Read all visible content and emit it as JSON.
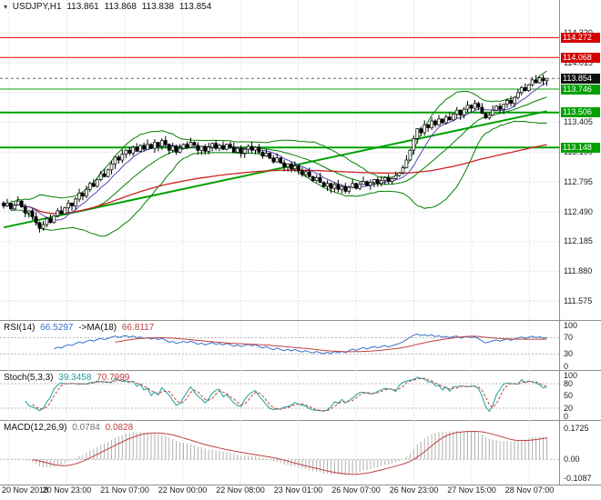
{
  "panels": {
    "main": {
      "symbol": "USDJPY,H1",
      "open": "113.861",
      "high": "113.868",
      "low": "113.838",
      "close": "113.854"
    },
    "rsi": {
      "label": "RSI(14)",
      "value": "66.5297",
      "ma_label": "->MA(18)",
      "ma_value": "66.8117"
    },
    "stoch": {
      "label": "Stoch(5,3,3)",
      "k_value": "39.3458",
      "d_value": "70.7999"
    },
    "macd": {
      "label": "MACD(12,26,9)",
      "main_value": "0.0784",
      "signal_value": "0.0828"
    }
  },
  "icons": {
    "chart_marker": "▾"
  },
  "chart_data": {
    "type": "candlestick",
    "symbol": "USDJPY",
    "timeframe": "H1",
    "grid_color": "#d4d4d4",
    "y_range": {
      "min": 111.42,
      "max": 114.62
    },
    "price_grid": [
      114.32,
      114.015,
      113.71,
      113.405,
      113.1,
      112.795,
      112.49,
      112.185,
      111.88,
      111.575
    ],
    "time_labels": [
      "20 Nov 2018",
      "20 Nov 23:00",
      "21 Nov 07:00",
      "22 Nov 00:00",
      "22 Nov 08:00",
      "23 Nov 01:00",
      "26 Nov 07:00",
      "26 Nov 23:00",
      "27 Nov 15:00",
      "28 Nov 07:00"
    ],
    "first_open": 112.58,
    "closes": [
      112.55,
      112.58,
      112.52,
      112.56,
      112.6,
      112.54,
      112.48,
      112.5,
      112.44,
      112.38,
      112.32,
      112.36,
      112.42,
      112.38,
      112.45,
      112.5,
      112.47,
      112.53,
      112.58,
      112.55,
      112.62,
      112.68,
      112.65,
      112.72,
      112.78,
      112.75,
      112.82,
      112.88,
      112.85,
      112.92,
      112.98,
      113.05,
      113.02,
      113.08,
      113.12,
      113.09,
      113.15,
      113.11,
      113.17,
      113.13,
      113.18,
      113.14,
      113.2,
      113.16,
      113.22,
      113.18,
      113.12,
      113.16,
      113.1,
      113.14,
      113.18,
      113.15,
      113.2,
      113.17,
      113.12,
      113.16,
      113.11,
      113.15,
      113.19,
      113.14,
      113.17,
      113.13,
      113.18,
      113.15,
      113.1,
      113.14,
      113.09,
      113.13,
      113.16,
      113.12,
      113.15,
      113.1,
      113.06,
      113.09,
      113.04,
      113.0,
      113.04,
      112.99,
      112.95,
      112.98,
      112.93,
      112.96,
      112.91,
      112.87,
      112.9,
      112.85,
      112.81,
      112.84,
      112.79,
      112.75,
      112.78,
      112.73,
      112.77,
      112.72,
      112.75,
      112.7,
      112.74,
      112.78,
      112.73,
      112.77,
      112.8,
      112.76,
      112.79,
      112.82,
      112.78,
      112.81,
      112.84,
      112.8,
      112.83,
      112.86,
      112.89,
      112.94,
      113.02,
      113.12,
      113.24,
      113.34,
      113.3,
      113.38,
      113.35,
      113.42,
      113.38,
      113.44,
      113.4,
      113.46,
      113.43,
      113.49,
      113.53,
      113.48,
      113.54,
      113.58,
      113.55,
      113.6,
      113.56,
      113.5,
      113.45,
      113.48,
      113.53,
      113.57,
      113.54,
      113.59,
      113.63,
      113.6,
      113.66,
      113.71,
      113.76,
      113.73,
      113.79,
      113.84,
      113.81,
      113.86,
      113.83,
      113.854
    ],
    "wick_pattern": [
      0.018,
      0.042,
      0.008,
      0.028,
      0.05,
      0.012,
      0.032,
      0.006,
      0.022,
      0.046,
      0.01,
      0.036
    ],
    "horizontal_lines": [
      {
        "value": 114.272,
        "color": "#e00000",
        "width": 1,
        "tag_bg": "#d40000"
      },
      {
        "value": 114.068,
        "color": "#e00000",
        "width": 1,
        "tag_bg": "#d40000"
      },
      {
        "value": 113.746,
        "color": "#00a000",
        "width": 1,
        "tag_bg": "#00a000"
      },
      {
        "value": 113.506,
        "color": "#00a000",
        "width": 2,
        "tag_bg": "#00a000"
      },
      {
        "value": 113.148,
        "color": "#00a000",
        "width": 2,
        "tag_bg": "#00a000"
      }
    ],
    "current_price": {
      "value": 113.854,
      "tag_bg": "#111111"
    },
    "trendline": {
      "color": "#00a000",
      "width": 2,
      "from_bar": 0,
      "from_price": 112.33,
      "to_bar": 151,
      "to_price": 113.52
    },
    "overlays": {
      "bollinger": {
        "period": 20,
        "deviation": 2,
        "color": "#008000"
      },
      "ma_fast": {
        "period": 8,
        "color": "#5544bb"
      },
      "ma_slow": {
        "period": 120,
        "color": "#cc2222"
      }
    },
    "indicators": {
      "rsi": {
        "period": 14,
        "ma_period": 18,
        "color": "#3b6fc9",
        "ma_color": "#c04040",
        "levels": [
          70,
          30
        ],
        "axis": [
          {
            "v": 100,
            "t": "100"
          },
          {
            "v": 70,
            "t": "70"
          },
          {
            "v": 30,
            "t": "30"
          },
          {
            "v": 0,
            "t": "0"
          }
        ]
      },
      "stoch": {
        "k": 5,
        "d": 3,
        "slowing": 3,
        "k_color": "#1f9e9e",
        "d_color": "#c04040",
        "levels": [
          80,
          20
        ],
        "axis": [
          {
            "v": 100,
            "t": "100"
          },
          {
            "v": 80,
            "t": "80"
          },
          {
            "v": 50,
            "t": "50"
          },
          {
            "v": 20,
            "t": "20"
          },
          {
            "v": 0,
            "t": "0"
          }
        ]
      },
      "macd": {
        "fast": 12,
        "slow": 26,
        "signal": 9,
        "hist_color": "#b0b0b0",
        "signal_color": "#c04040",
        "range": [
          -0.12,
          0.19
        ],
        "axis": [
          {
            "v": 0.1725,
            "t": "0.1725"
          },
          {
            "v": 0,
            "t": "0.00"
          },
          {
            "v": -0.1087,
            "t": "-0.1087"
          }
        ]
      }
    }
  }
}
